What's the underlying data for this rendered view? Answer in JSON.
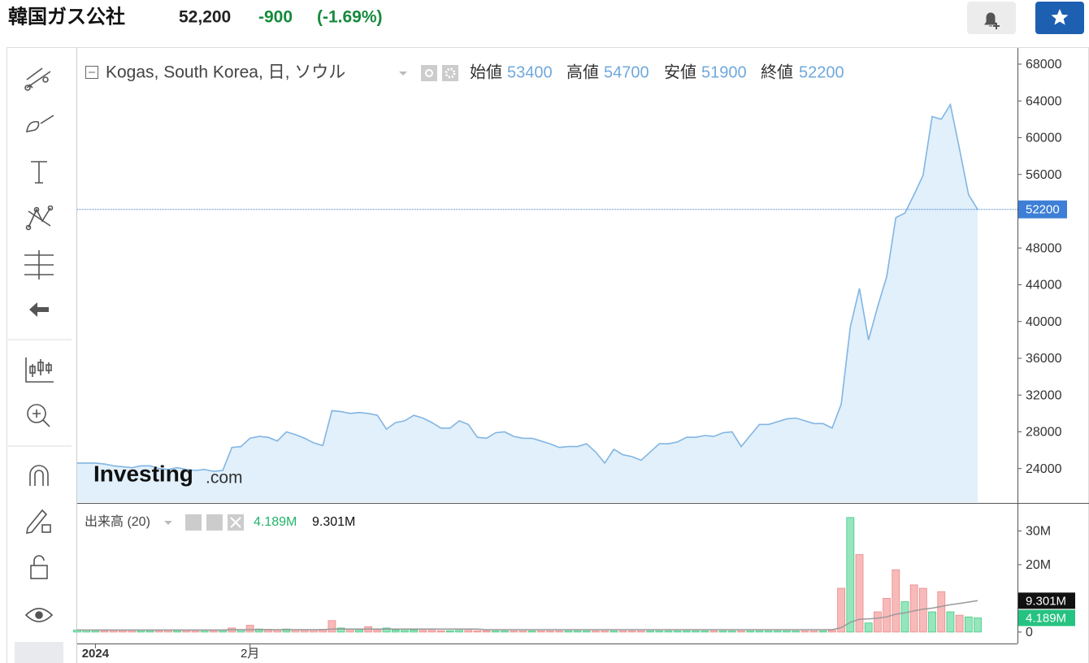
{
  "header": {
    "title": "韓国ガス公社",
    "price": "52,200",
    "change": "-900",
    "change_pct": "(-1.69%)"
  },
  "watermark": {
    "brand": "Investing",
    "suffix": ".com"
  },
  "chart_data": [
    {
      "type": "area",
      "title": "Kogas, South Korea, 日, ソウル",
      "ohlc": {
        "open_label": "始値",
        "open": 53400,
        "high_label": "高値",
        "high": 54700,
        "low_label": "安値",
        "low": 51900,
        "close_label": "終値",
        "close": 52200
      },
      "series": [
        {
          "name": "Kogas, South Korea, 日, ソウル",
          "color": "#82b5e3",
          "fill": "#e1f0fa",
          "values": [
            24600,
            24600,
            24600,
            24500,
            24300,
            24200,
            24100,
            24300,
            24300,
            24000,
            23900,
            24100,
            23900,
            23800,
            23900,
            23700,
            23800,
            26300,
            26400,
            27300,
            27500,
            27400,
            27000,
            28000,
            27700,
            27300,
            26800,
            26500,
            30300,
            30200,
            30000,
            30100,
            30000,
            29800,
            28300,
            29000,
            29200,
            29800,
            29500,
            29000,
            28400,
            28400,
            29200,
            28800,
            27400,
            27300,
            27900,
            28000,
            27500,
            27300,
            27300,
            27000,
            26700,
            26300,
            26400,
            26400,
            26700,
            25800,
            24600,
            26100,
            25500,
            25300,
            24900,
            25800,
            26700,
            26700,
            26900,
            27400,
            27400,
            27600,
            27500,
            27900,
            28000,
            26400,
            27600,
            28800,
            28800,
            29100,
            29400,
            29500,
            29200,
            28900,
            28900,
            28400,
            31000,
            39400,
            43600,
            38000,
            41600,
            44900,
            51300,
            51800,
            53800,
            55900,
            62300,
            62000,
            63600,
            58800,
            53800,
            52200
          ]
        }
      ],
      "last_color": "#3d7fd6",
      "ylim": [
        20350,
        69500
      ],
      "yticks": [
        24000,
        28000,
        32000,
        36000,
        40000,
        44000,
        48000,
        52000,
        56000,
        60000,
        64000,
        68000
      ],
      "grid": false
    },
    {
      "type": "bar",
      "title": "出来高 (20)",
      "categories": [
        null,
        null,
        "2024",
        null,
        null,
        null,
        null,
        null,
        null,
        null,
        null,
        null,
        null,
        null,
        null,
        null,
        null,
        null,
        null,
        "2月",
        null,
        null,
        null,
        null,
        null,
        null,
        null,
        null,
        null,
        null,
        null,
        null,
        null,
        null,
        null,
        null,
        null,
        null,
        null,
        null,
        null,
        null,
        null,
        null,
        null,
        null,
        null,
        null,
        null,
        null,
        null,
        null,
        null,
        null,
        null,
        null,
        null,
        null,
        null,
        null,
        null,
        null,
        null,
        null,
        null,
        null,
        null,
        null,
        null,
        null,
        null,
        null,
        null,
        null,
        null,
        null,
        null,
        null,
        null,
        null,
        null,
        null,
        null,
        null,
        null,
        null,
        null,
        null,
        null,
        null,
        null,
        null,
        null,
        null,
        null,
        null,
        null,
        null,
        null,
        null
      ],
      "series": [
        {
          "label_color": "#26c281",
          "values": [
            600000,
            550000,
            500000,
            450000,
            500000,
            480000,
            520000,
            500000,
            450000,
            470000,
            500000,
            480000,
            460000,
            500000,
            520000,
            480000,
            500000,
            1200000,
            700000,
            2000000,
            900000,
            800000,
            700000,
            900000,
            700000,
            600000,
            700000,
            800000,
            3400000,
            1200000,
            800000,
            700000,
            1600000,
            700000,
            1200000,
            600000,
            500000,
            600000,
            500000,
            500000,
            400000,
            400000,
            500000,
            500000,
            400000,
            400000,
            300000,
            300000,
            300000,
            300000,
            300000,
            300000,
            300000,
            300000,
            300000,
            300000,
            300000,
            300000,
            300000,
            300000,
            300000,
            300000,
            300000,
            300000,
            300000,
            300000,
            300000,
            300000,
            300000,
            300000,
            300000,
            300000,
            300000,
            300000,
            300000,
            300000,
            300000,
            300000,
            300000,
            300000,
            300000,
            300000,
            300000,
            500000,
            13000000,
            34000000,
            23000000,
            2700000,
            6000000,
            10000000,
            18500000,
            9000000,
            14000000,
            13000000,
            6000000,
            12000000,
            6000000,
            5000000,
            4500000,
            4189000
          ],
          "colors": [
            "#95e6bd",
            "#95e6bd",
            "#95e6bd",
            "#f8b9b9",
            "#f8b9b9",
            "#f8b9b9",
            "#f8b9b9",
            "#95e6bd",
            "#95e6bd",
            "#f8b9b9",
            "#f8b9b9",
            "#95e6bd",
            "#f8b9b9",
            "#f8b9b9",
            "#95e6bd",
            "#f8b9b9",
            "#95e6bd",
            "#f8b9b9",
            "#95e6bd",
            "#f8b9b9",
            "#95e6bd",
            "#f8b9b9",
            "#f8b9b9",
            "#95e6bd",
            "#f8b9b9",
            "#f8b9b9",
            "#f8b9b9",
            "#f8b9b9",
            "#f8b9b9",
            "#95e6bd",
            "#f8b9b9",
            "#95e6bd",
            "#f8b9b9",
            "#f8b9b9",
            "#95e6bd",
            "#95e6bd",
            "#95e6bd",
            "#95e6bd",
            "#f8b9b9",
            "#f8b9b9",
            "#f8b9b9",
            "#95e6bd",
            "#95e6bd",
            "#f8b9b9",
            "#f8b9b9",
            "#f8b9b9",
            "#95e6bd",
            "#95e6bd",
            "#f8b9b9",
            "#f8b9b9",
            "#95e6bd",
            "#f8b9b9",
            "#f8b9b9",
            "#f8b9b9",
            "#95e6bd",
            "#95e6bd",
            "#95e6bd",
            "#f8b9b9",
            "#f8b9b9",
            "#95e6bd",
            "#f8b9b9",
            "#f8b9b9",
            "#f8b9b9",
            "#95e6bd",
            "#95e6bd",
            "#95e6bd",
            "#95e6bd",
            "#95e6bd",
            "#95e6bd",
            "#95e6bd",
            "#f8b9b9",
            "#95e6bd",
            "#95e6bd",
            "#f8b9b9",
            "#95e6bd",
            "#95e6bd",
            "#95e6bd",
            "#95e6bd",
            "#95e6bd",
            "#95e6bd",
            "#f8b9b9",
            "#f8b9b9",
            "#95e6bd",
            "#f8b9b9",
            "#f8b9b9",
            "#95e6bd",
            "#f8b9b9",
            "#95e6bd",
            "#f8b9b9",
            "#f8b9b9",
            "#f8b9b9",
            "#95e6bd",
            "#f8b9b9",
            "#f8b9b9",
            "#95e6bd",
            "#f8b9b9",
            "#95e6bd",
            "#f8b9b9",
            "#95e6bd",
            "#95e6bd"
          ],
          "value_labels": [
            null,
            null,
            null,
            null,
            null,
            null,
            null,
            null,
            null,
            null,
            null,
            null,
            null,
            null,
            null,
            null,
            null,
            null,
            null,
            null,
            null,
            null,
            null,
            null,
            null,
            null,
            null,
            null,
            null,
            null,
            null,
            null,
            null,
            null,
            null,
            null,
            null,
            null,
            null,
            null,
            null,
            null,
            null,
            null,
            null,
            null,
            null,
            null,
            null,
            null,
            null,
            null,
            null,
            null,
            null,
            null,
            null,
            null,
            null,
            null,
            null,
            null,
            null,
            null,
            null,
            null,
            null,
            null,
            null,
            null,
            null,
            null,
            null,
            null,
            null,
            null,
            null,
            null,
            null,
            null,
            null,
            null,
            null,
            null,
            null,
            null,
            null,
            null,
            null,
            null,
            null,
            null,
            null,
            null,
            null,
            null,
            null,
            null,
            null,
            "4.189M"
          ]
        },
        {
          "type": "line",
          "color": "#9a9a9a",
          "label_color": "#111111",
          "values": [
            600000,
            600000,
            600000,
            600000,
            600000,
            600000,
            600000,
            600000,
            600000,
            600000,
            600000,
            600000,
            600000,
            600000,
            600000,
            600000,
            600000,
            700000,
            700000,
            700000,
            700000,
            700000,
            700000,
            700000,
            700000,
            700000,
            700000,
            700000,
            900000,
            900000,
            900000,
            900000,
            900000,
            900000,
            900000,
            900000,
            900000,
            900000,
            900000,
            900000,
            900000,
            900000,
            900000,
            900000,
            900000,
            700000,
            700000,
            700000,
            700000,
            700000,
            700000,
            700000,
            700000,
            700000,
            700000,
            700000,
            700000,
            700000,
            700000,
            700000,
            700000,
            700000,
            700000,
            700000,
            700000,
            700000,
            700000,
            700000,
            700000,
            700000,
            700000,
            700000,
            700000,
            700000,
            700000,
            700000,
            700000,
            700000,
            700000,
            700000,
            700000,
            700000,
            700000,
            700000,
            1300000,
            2900000,
            3800000,
            3900000,
            4100000,
            4500000,
            5300000,
            5700000,
            6300000,
            6800000,
            7100000,
            7600000,
            8100000,
            8500000,
            8900000,
            9301000
          ],
          "value_labels": [
            null,
            null,
            null,
            null,
            null,
            null,
            null,
            null,
            null,
            null,
            null,
            null,
            null,
            null,
            null,
            null,
            null,
            null,
            null,
            null,
            null,
            null,
            null,
            null,
            null,
            null,
            null,
            null,
            null,
            null,
            null,
            null,
            null,
            null,
            null,
            null,
            null,
            null,
            null,
            null,
            null,
            null,
            null,
            null,
            null,
            null,
            null,
            null,
            null,
            null,
            null,
            null,
            null,
            null,
            null,
            null,
            null,
            null,
            null,
            null,
            null,
            null,
            null,
            null,
            null,
            null,
            null,
            null,
            null,
            null,
            null,
            null,
            null,
            null,
            null,
            null,
            null,
            null,
            null,
            null,
            null,
            null,
            null,
            null,
            null,
            null,
            null,
            null,
            null,
            null,
            null,
            null,
            null,
            null,
            null,
            null,
            null,
            null,
            null,
            "9.301M"
          ]
        }
      ],
      "ylim": [
        -3400000,
        37600000
      ],
      "yticks": [
        0,
        {
          "value": 20000000,
          "label": "20M"
        },
        {
          "value": 30000000,
          "label": "30M"
        }
      ],
      "grid": false
    }
  ]
}
